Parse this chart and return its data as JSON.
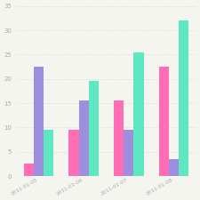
{
  "dates": [
    "2011-01-05",
    "2011-01-06",
    "2011-01-07",
    "2011-01-08"
  ],
  "series": {
    "pink": [
      2.5,
      9.5,
      15.5,
      22.5
    ],
    "purple": [
      22.5,
      15.5,
      9.5,
      3.5
    ],
    "teal": [
      9.5,
      19.5,
      25.5,
      32.0
    ]
  },
  "colors": {
    "pink": "#ff6eb4",
    "purple": "#9b8fde",
    "teal": "#5de8c1"
  },
  "ylim": [
    0,
    35
  ],
  "yticks": [
    0,
    5,
    10,
    15,
    20,
    25,
    30,
    35
  ],
  "background_color": "#f5f5f0",
  "grid_color": "#cccccc",
  "bar_width": 0.22
}
